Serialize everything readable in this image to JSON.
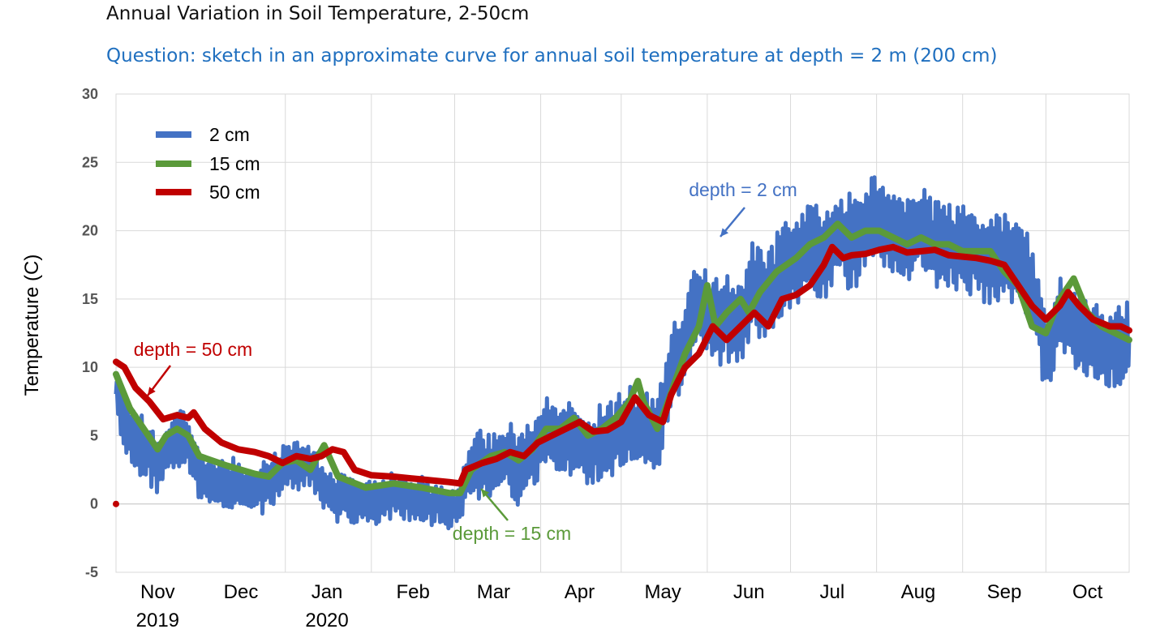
{
  "title": "Annual Variation in Soil Temperature, 2-50cm",
  "subtitle": "Question: sketch in an approximate curve for annual soil temperature at depth = 2 m (200 cm)",
  "chart_data": {
    "type": "line",
    "title": "Annual Variation in Soil Temperature, 2-50cm",
    "ylabel": "Temperature (C)",
    "xlabel": "",
    "ylim": [
      -5,
      30
    ],
    "yticks": [
      -5,
      0,
      5,
      10,
      15,
      20,
      25,
      30
    ],
    "xlim": [
      0,
      365
    ],
    "month_ticks": [
      {
        "label": "Nov",
        "year": "2019",
        "day": 15
      },
      {
        "label": "Dec",
        "year": "",
        "day": 45
      },
      {
        "label": "Jan",
        "year": "2020",
        "day": 76
      },
      {
        "label": "Feb",
        "year": "",
        "day": 107
      },
      {
        "label": "Mar",
        "year": "",
        "day": 136
      },
      {
        "label": "Apr",
        "year": "",
        "day": 167
      },
      {
        "label": "May",
        "year": "",
        "day": 197
      },
      {
        "label": "Jun",
        "year": "",
        "day": 228
      },
      {
        "label": "Jul",
        "year": "",
        "day": 258
      },
      {
        "label": "Aug",
        "year": "",
        "day": 289
      },
      {
        "label": "Sep",
        "year": "",
        "day": 320
      },
      {
        "label": "Oct",
        "year": "",
        "day": 350
      }
    ],
    "gridline_days": [
      0,
      61,
      92,
      122,
      153,
      182,
      213,
      243,
      274,
      305,
      335
    ],
    "x_unit": "days since Oct 15, 2019",
    "series": [
      {
        "name": "2 cm",
        "color": "#4472c4",
        "base": [
          [
            0,
            8
          ],
          [
            5,
            5
          ],
          [
            10,
            4
          ],
          [
            15,
            3
          ],
          [
            20,
            4.5
          ],
          [
            25,
            5
          ],
          [
            30,
            2
          ],
          [
            40,
            1.5
          ],
          [
            50,
            0.8
          ],
          [
            55,
            1.5
          ],
          [
            60,
            2.5
          ],
          [
            65,
            3
          ],
          [
            70,
            3
          ],
          [
            75,
            1
          ],
          [
            80,
            0.5
          ],
          [
            85,
            0.3
          ],
          [
            90,
            0.2
          ],
          [
            100,
            0.5
          ],
          [
            110,
            0.3
          ],
          [
            115,
            0
          ],
          [
            120,
            -0.3
          ],
          [
            124,
            0
          ],
          [
            126,
            2
          ],
          [
            130,
            3
          ],
          [
            135,
            2.5
          ],
          [
            140,
            3.5
          ],
          [
            145,
            2.5
          ],
          [
            150,
            4
          ],
          [
            155,
            5
          ],
          [
            160,
            4.5
          ],
          [
            165,
            5
          ],
          [
            170,
            4
          ],
          [
            175,
            4.5
          ],
          [
            180,
            5
          ],
          [
            185,
            6
          ],
          [
            190,
            5
          ],
          [
            195,
            5
          ],
          [
            200,
            10
          ],
          [
            205,
            12
          ],
          [
            210,
            15
          ],
          [
            215,
            13
          ],
          [
            220,
            14
          ],
          [
            225,
            13
          ],
          [
            230,
            16
          ],
          [
            235,
            15
          ],
          [
            240,
            17
          ],
          [
            245,
            18
          ],
          [
            250,
            19
          ],
          [
            255,
            18
          ],
          [
            260,
            20
          ],
          [
            265,
            19
          ],
          [
            270,
            20
          ],
          [
            275,
            21
          ],
          [
            280,
            20
          ],
          [
            285,
            19
          ],
          [
            290,
            20
          ],
          [
            295,
            19
          ],
          [
            300,
            19
          ],
          [
            305,
            18.5
          ],
          [
            310,
            18.5
          ],
          [
            315,
            18
          ],
          [
            320,
            18
          ],
          [
            325,
            17.5
          ],
          [
            330,
            16
          ],
          [
            335,
            11
          ],
          [
            340,
            14
          ],
          [
            345,
            13
          ],
          [
            350,
            12
          ],
          [
            355,
            11.5
          ],
          [
            360,
            11.5
          ],
          [
            365,
            12
          ]
        ],
        "amplitude": [
          [
            0,
            2
          ],
          [
            60,
            1.5
          ],
          [
            80,
            1.5
          ],
          [
            124,
            1.2
          ],
          [
            130,
            2.2
          ],
          [
            190,
            2.6
          ],
          [
            240,
            3
          ],
          [
            330,
            2.8
          ],
          [
            365,
            2.4
          ]
        ]
      },
      {
        "name": "15 cm",
        "color": "#5b9a3a",
        "points": [
          [
            0,
            9.5
          ],
          [
            5,
            7
          ],
          [
            10,
            5.5
          ],
          [
            15,
            4
          ],
          [
            18,
            5
          ],
          [
            22,
            5.5
          ],
          [
            26,
            5
          ],
          [
            30,
            3.5
          ],
          [
            40,
            2.8
          ],
          [
            50,
            2.2
          ],
          [
            55,
            2
          ],
          [
            60,
            3
          ],
          [
            65,
            3.2
          ],
          [
            70,
            2.5
          ],
          [
            75,
            4.3
          ],
          [
            80,
            2
          ],
          [
            90,
            1.2
          ],
          [
            100,
            1.5
          ],
          [
            110,
            1.2
          ],
          [
            120,
            0.8
          ],
          [
            124,
            0.8
          ],
          [
            128,
            2.5
          ],
          [
            135,
            3.5
          ],
          [
            140,
            3.8
          ],
          [
            145,
            3.2
          ],
          [
            150,
            4
          ],
          [
            155,
            5.5
          ],
          [
            160,
            5.5
          ],
          [
            165,
            6.3
          ],
          [
            170,
            5
          ],
          [
            175,
            5.5
          ],
          [
            180,
            6.3
          ],
          [
            185,
            7.5
          ],
          [
            188,
            9
          ],
          [
            190,
            7.5
          ],
          [
            195,
            5.5
          ],
          [
            198,
            7
          ],
          [
            205,
            11
          ],
          [
            210,
            13
          ],
          [
            213,
            16
          ],
          [
            216,
            13
          ],
          [
            220,
            14
          ],
          [
            225,
            15
          ],
          [
            228,
            14
          ],
          [
            232,
            15.5
          ],
          [
            238,
            17
          ],
          [
            245,
            18
          ],
          [
            250,
            19
          ],
          [
            255,
            19.5
          ],
          [
            260,
            20.5
          ],
          [
            265,
            19.5
          ],
          [
            270,
            20
          ],
          [
            275,
            20
          ],
          [
            280,
            19.5
          ],
          [
            285,
            19
          ],
          [
            290,
            19.5
          ],
          [
            295,
            19
          ],
          [
            300,
            19
          ],
          [
            305,
            18.5
          ],
          [
            310,
            18.5
          ],
          [
            315,
            18.5
          ],
          [
            320,
            17
          ],
          [
            325,
            16
          ],
          [
            330,
            13
          ],
          [
            335,
            12.5
          ],
          [
            340,
            15
          ],
          [
            345,
            16.5
          ],
          [
            350,
            14
          ],
          [
            355,
            13
          ],
          [
            360,
            12.5
          ],
          [
            365,
            12
          ]
        ]
      },
      {
        "name": "50 cm",
        "color": "#c00000",
        "points": [
          [
            0,
            10.4
          ],
          [
            3,
            10
          ],
          [
            7,
            8.5
          ],
          [
            12,
            7.5
          ],
          [
            17,
            6.2
          ],
          [
            22,
            6.5
          ],
          [
            26,
            6.3
          ],
          [
            28,
            6.7
          ],
          [
            32,
            5.5
          ],
          [
            38,
            4.5
          ],
          [
            44,
            4
          ],
          [
            50,
            3.8
          ],
          [
            55,
            3.5
          ],
          [
            60,
            3
          ],
          [
            65,
            3.5
          ],
          [
            70,
            3.3
          ],
          [
            74,
            3.5
          ],
          [
            78,
            4
          ],
          [
            82,
            3.8
          ],
          [
            86,
            2.5
          ],
          [
            92,
            2.1
          ],
          [
            100,
            2
          ],
          [
            110,
            1.8
          ],
          [
            120,
            1.6
          ],
          [
            124,
            1.5
          ],
          [
            126,
            2.5
          ],
          [
            132,
            3
          ],
          [
            137,
            3.3
          ],
          [
            142,
            3.8
          ],
          [
            147,
            3.5
          ],
          [
            152,
            4.5
          ],
          [
            157,
            5
          ],
          [
            162,
            5.5
          ],
          [
            167,
            6
          ],
          [
            172,
            5.3
          ],
          [
            177,
            5.4
          ],
          [
            182,
            6
          ],
          [
            187,
            7.8
          ],
          [
            192,
            6.5
          ],
          [
            197,
            6
          ],
          [
            200,
            8
          ],
          [
            205,
            10
          ],
          [
            210,
            11
          ],
          [
            215,
            13
          ],
          [
            220,
            12
          ],
          [
            225,
            13
          ],
          [
            230,
            14
          ],
          [
            235,
            13
          ],
          [
            240,
            15
          ],
          [
            245,
            15.3
          ],
          [
            250,
            16
          ],
          [
            255,
            17.5
          ],
          [
            258,
            18.8
          ],
          [
            262,
            18
          ],
          [
            265,
            18.2
          ],
          [
            270,
            18.3
          ],
          [
            275,
            18.6
          ],
          [
            280,
            18.8
          ],
          [
            285,
            18.4
          ],
          [
            290,
            18.5
          ],
          [
            295,
            18.6
          ],
          [
            300,
            18.2
          ],
          [
            305,
            18.1
          ],
          [
            310,
            18
          ],
          [
            315,
            17.8
          ],
          [
            320,
            17.5
          ],
          [
            325,
            16
          ],
          [
            330,
            14.5
          ],
          [
            335,
            13.5
          ],
          [
            340,
            14.5
          ],
          [
            343,
            15.5
          ],
          [
            347,
            14.5
          ],
          [
            352,
            13.5
          ],
          [
            358,
            13
          ],
          [
            362,
            13
          ],
          [
            365,
            12.7
          ]
        ]
      }
    ],
    "legend": [
      "2 cm",
      "15 cm",
      "50 cm"
    ],
    "legend_position": "top-left",
    "grid": true,
    "annotations": [
      {
        "text": "depth = 2 cm",
        "color": "#4472c4",
        "series": "2 cm"
      },
      {
        "text": "depth = 15 cm",
        "color": "#5b9a3a",
        "series": "15 cm"
      },
      {
        "text": "depth = 50 cm",
        "color": "#c00000",
        "series": "50 cm"
      }
    ]
  }
}
